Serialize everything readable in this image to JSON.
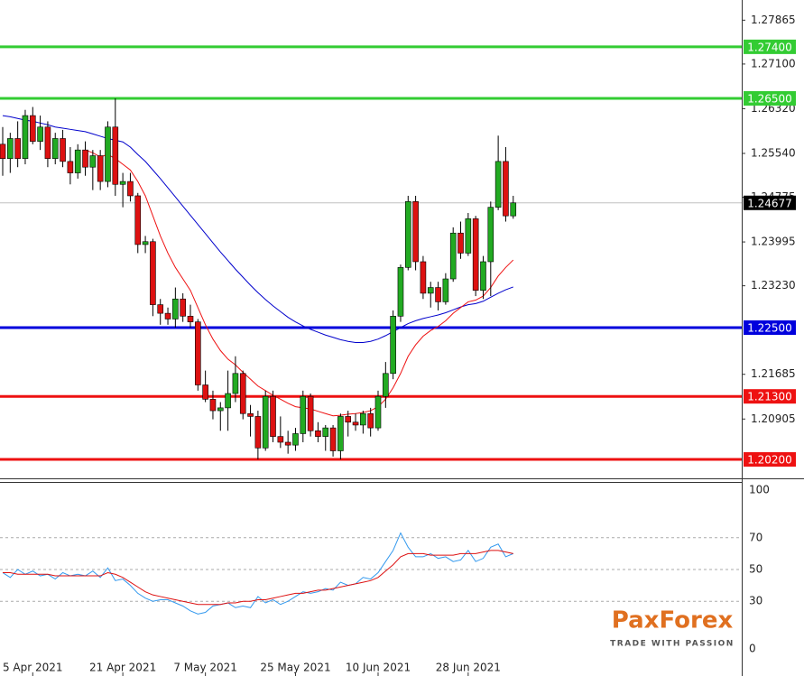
{
  "chart_data": [
    {
      "type": "candlestick",
      "open": [
        1.257,
        1.2545,
        1.258,
        1.2545,
        1.262,
        1.2575,
        1.26,
        1.2545,
        1.258,
        1.254,
        1.252,
        1.256,
        1.253,
        1.255,
        1.2505,
        1.26,
        1.25,
        1.2505,
        1.248,
        1.2395,
        1.24,
        1.229,
        1.2275,
        1.2265,
        1.23,
        1.227,
        1.226,
        1.215,
        1.2125,
        1.2105,
        1.211,
        1.2135,
        1.217,
        1.21,
        1.2095,
        1.204,
        1.213,
        1.206,
        1.205,
        1.2045,
        1.2065,
        1.213,
        1.207,
        1.206,
        1.2075,
        1.2035,
        1.2095,
        1.2085,
        1.208,
        1.21,
        1.2075,
        1.213,
        1.217,
        1.227,
        1.2355,
        1.247,
        1.2365,
        1.231,
        1.232,
        1.2295,
        1.2335,
        1.2415,
        1.238,
        1.244,
        1.2315,
        1.2365,
        1.246,
        1.254,
        1.2445
      ],
      "high": [
        1.26,
        1.259,
        1.261,
        1.263,
        1.2635,
        1.262,
        1.261,
        1.259,
        1.2595,
        1.2565,
        1.257,
        1.2575,
        1.256,
        1.256,
        1.261,
        1.265,
        1.252,
        1.252,
        1.2485,
        1.241,
        1.2405,
        1.23,
        1.2285,
        1.232,
        1.231,
        1.229,
        1.2265,
        1.2175,
        1.214,
        1.212,
        1.2175,
        1.22,
        1.2175,
        1.2115,
        1.2105,
        1.214,
        1.214,
        1.2095,
        1.207,
        1.2075,
        1.214,
        1.2135,
        1.2085,
        1.208,
        1.208,
        1.21,
        1.2105,
        1.21,
        1.2105,
        1.211,
        1.214,
        1.219,
        1.228,
        1.236,
        1.248,
        1.248,
        1.2375,
        1.233,
        1.233,
        1.2345,
        1.2425,
        1.2435,
        1.245,
        1.2445,
        1.2375,
        1.247,
        1.2585,
        1.2565,
        1.248
      ],
      "low": [
        1.2515,
        1.252,
        1.253,
        1.2535,
        1.257,
        1.256,
        1.253,
        1.2535,
        1.253,
        1.25,
        1.251,
        1.2515,
        1.249,
        1.249,
        1.2495,
        1.248,
        1.246,
        1.247,
        1.238,
        1.238,
        1.227,
        1.2255,
        1.2255,
        1.225,
        1.226,
        1.225,
        1.214,
        1.212,
        1.209,
        1.207,
        1.207,
        1.212,
        1.209,
        1.206,
        1.202,
        1.2035,
        1.205,
        1.204,
        1.203,
        1.2035,
        1.205,
        1.206,
        1.205,
        1.2035,
        1.2025,
        1.202,
        1.206,
        1.207,
        1.2065,
        1.206,
        1.207,
        1.211,
        1.216,
        1.226,
        1.235,
        1.235,
        1.23,
        1.2285,
        1.228,
        1.229,
        1.233,
        1.237,
        1.2375,
        1.2305,
        1.23,
        1.2305,
        1.2455,
        1.2435,
        1.244
      ],
      "close": [
        1.2545,
        1.258,
        1.2545,
        1.262,
        1.2575,
        1.26,
        1.2545,
        1.258,
        1.254,
        1.252,
        1.256,
        1.253,
        1.255,
        1.2505,
        1.26,
        1.25,
        1.2505,
        1.248,
        1.2395,
        1.24,
        1.229,
        1.2275,
        1.2265,
        1.23,
        1.227,
        1.226,
        1.215,
        1.2125,
        1.2105,
        1.211,
        1.2135,
        1.217,
        1.21,
        1.2095,
        1.204,
        1.213,
        1.206,
        1.205,
        1.2045,
        1.2065,
        1.213,
        1.207,
        1.206,
        1.2075,
        1.2035,
        1.2095,
        1.2085,
        1.208,
        1.21,
        1.2075,
        1.213,
        1.217,
        1.227,
        1.2355,
        1.247,
        1.2365,
        1.231,
        1.232,
        1.2295,
        1.2335,
        1.2415,
        1.238,
        1.244,
        1.2315,
        1.2365,
        1.246,
        1.254,
        1.2445,
        1.24677
      ],
      "up_color": "#22aa22",
      "down_color": "#dd1111",
      "ma": [
        {
          "color": "#0000cc",
          "values": [
            1.262,
            1.2618,
            1.2615,
            1.2612,
            1.261,
            1.2607,
            1.2604,
            1.26,
            1.2598,
            1.2596,
            1.2594,
            1.2592,
            1.2588,
            1.2584,
            1.258,
            1.2577,
            1.2574,
            1.2565,
            1.2552,
            1.254,
            1.2525,
            1.251,
            1.2494,
            1.2478,
            1.2462,
            1.2446,
            1.243,
            1.2414,
            1.2398,
            1.2382,
            1.2367,
            1.2352,
            1.2338,
            1.2324,
            1.2311,
            1.2299,
            1.2288,
            1.2278,
            1.2268,
            1.226,
            1.2253,
            1.2247,
            1.2242,
            1.2237,
            1.2233,
            1.2229,
            1.2226,
            1.2224,
            1.2224,
            1.2226,
            1.223,
            1.2236,
            1.2243,
            1.225,
            1.2257,
            1.2262,
            1.2266,
            1.2269,
            1.2272,
            1.2276,
            1.2281,
            1.2286,
            1.229,
            1.2292,
            1.2296,
            1.2303,
            1.231,
            1.2316,
            1.2321
          ]
        },
        {
          "color": "#ee1111",
          "values": [
            null,
            null,
            null,
            null,
            null,
            null,
            null,
            null,
            null,
            null,
            null,
            1.256,
            1.2555,
            1.2548,
            1.2552,
            1.2545,
            1.2535,
            1.2525,
            1.2505,
            1.248,
            1.2445,
            1.241,
            1.238,
            1.2355,
            1.2335,
            1.2315,
            1.2285,
            1.2255,
            1.223,
            1.221,
            1.2195,
            1.2185,
            1.2172,
            1.216,
            1.2148,
            1.214,
            1.2132,
            1.2125,
            1.2118,
            1.2112,
            1.211,
            1.2108,
            1.2104,
            1.21,
            1.2096,
            1.2097,
            1.2099,
            1.21,
            1.2102,
            1.2105,
            1.2112,
            1.2125,
            1.2145,
            1.217,
            1.22,
            1.222,
            1.2235,
            1.2245,
            1.2252,
            1.2262,
            1.2275,
            1.2285,
            1.2295,
            1.2298,
            1.2305,
            1.232,
            1.234,
            1.2355,
            1.2368
          ]
        }
      ],
      "ylim": [
        1.19917,
        1.28217
      ],
      "yticks": [
        1.27865,
        {
          "value": 1.271,
          "label": "1.27100"
        },
        {
          "value": 1.2632,
          "label": "1.26320"
        },
        {
          "value": 1.2554,
          "label": "1.25540"
        },
        1.24775,
        1.23995,
        {
          "value": 1.2323,
          "label": "1.23230"
        },
        1.21685,
        1.20905
      ],
      "levels": [
        {
          "value": 1.274,
          "label": "1.27400",
          "color": "#33cc33"
        },
        {
          "value": 1.265,
          "label": "1.26500",
          "color": "#33cc33"
        },
        {
          "value": 1.225,
          "label": "1.22500",
          "color": "#0000dd"
        },
        {
          "value": 1.213,
          "label": "1.21300",
          "color": "#ee1111"
        },
        {
          "value": 1.202,
          "label": "1.20200",
          "color": "#ee1111"
        }
      ],
      "last_price": 1.24677
    },
    {
      "type": "line",
      "series": [
        {
          "color": "#3399ee",
          "values": [
            48,
            45,
            50,
            47,
            49,
            46,
            47,
            44,
            48,
            46,
            47,
            46,
            49,
            45,
            51,
            43,
            44,
            40,
            35,
            32,
            30,
            31,
            31,
            29,
            27,
            24,
            22,
            23,
            27,
            28,
            29,
            26,
            27,
            26,
            33,
            29,
            31,
            28,
            30,
            33,
            36,
            35,
            36,
            38,
            37,
            42,
            40,
            41,
            45,
            44,
            48,
            55,
            62,
            73,
            64,
            58,
            58,
            60,
            57,
            58,
            55,
            56,
            62,
            55,
            57,
            64,
            66,
            58,
            60
          ]
        },
        {
          "color": "#dd1111",
          "values": [
            48,
            48,
            47,
            47,
            47,
            47,
            47,
            46,
            46,
            46,
            46,
            46,
            46,
            46,
            48,
            47,
            45,
            42,
            39,
            36,
            34,
            33,
            32,
            31,
            30,
            29,
            28,
            28,
            28,
            28,
            29,
            29,
            30,
            30,
            31,
            31,
            32,
            33,
            34,
            35,
            35,
            36,
            37,
            37,
            38,
            39,
            40,
            41,
            42,
            43,
            45,
            49,
            53,
            58,
            60,
            60,
            60,
            59,
            59,
            59,
            59,
            60,
            60,
            60,
            61,
            62,
            62,
            61,
            60
          ]
        }
      ],
      "ylim": [
        -17,
        104.5
      ],
      "yticks": [
        100,
        70,
        50,
        30,
        0
      ],
      "xticks": [
        {
          "value": 4,
          "label": "5 Apr 2021"
        },
        {
          "value": 16,
          "label": "21 Apr 2021"
        },
        {
          "value": 27,
          "label": "7 May 2021"
        },
        {
          "value": 39,
          "label": "25 May 2021"
        },
        {
          "value": 50,
          "label": "10 Jun 2021"
        },
        {
          "value": 62,
          "label": "28 Jun 2021"
        }
      ]
    }
  ],
  "logo": {
    "name": "PaxForex",
    "tagline": "TRADE WITH PASSION"
  }
}
